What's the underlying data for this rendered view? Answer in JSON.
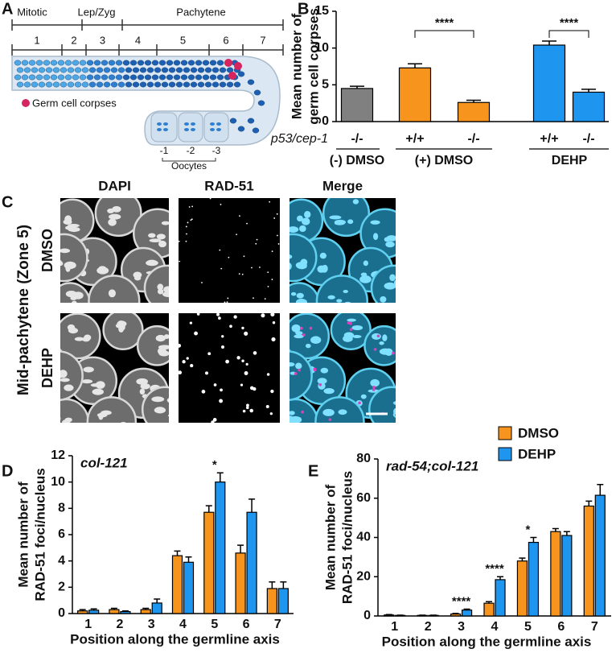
{
  "panel_labels": [
    "A",
    "B",
    "C",
    "D",
    "E"
  ],
  "diagram": {
    "stages": [
      "Mitotic",
      "Lep/Zyg",
      "Pachytene"
    ],
    "zones": [
      "1",
      "2",
      "3",
      "4",
      "5",
      "6",
      "7"
    ],
    "legend": "Germ cell corpses",
    "oocytes": [
      "-1",
      "-2",
      "-3"
    ],
    "oocytes_label": "Oocytes"
  },
  "micrographs": {
    "title": "Mid-pachytene (Zone 5)",
    "columns": [
      "DAPI",
      "RAD-51",
      "Merge"
    ],
    "rows": [
      "DMSO",
      "DEHP"
    ]
  },
  "chart_data": [
    {
      "type": "bar",
      "ylabel": [
        "Mean number of",
        "germ cell corpses"
      ],
      "categories": [
        "-/-",
        "+/+",
        "-/-",
        "+/+",
        "-/-"
      ],
      "category_axis_label": "p53/cep-1",
      "group_labels": [
        "(-) DMSO",
        "(+) DMSO",
        "DEHP"
      ],
      "values": [
        4.5,
        7.3,
        2.6,
        10.4,
        4.0
      ],
      "errors": [
        0.3,
        0.55,
        0.3,
        0.55,
        0.4
      ],
      "colors": [
        "#808080",
        "#f7941d",
        "#f7941d",
        "#1e96f0",
        "#1e96f0"
      ],
      "ylim": [
        0,
        15
      ],
      "yticks": [
        0,
        5,
        10,
        15
      ],
      "annotations": [
        {
          "text": "****"
        },
        {
          "text": "****"
        }
      ]
    },
    {
      "type": "grouped_bar",
      "title": "col-121",
      "xlabel": "Position along the germline axis",
      "ylabel": [
        "Mean number of",
        "RAD-51 foci/nucleus"
      ],
      "categories": [
        "1",
        "2",
        "3",
        "4",
        "5",
        "6",
        "7"
      ],
      "series": [
        {
          "color": "#f7941d",
          "values": [
            0.2,
            0.3,
            0.3,
            4.4,
            7.7,
            4.6,
            1.9
          ],
          "errors": [
            0.1,
            0.1,
            0.1,
            0.35,
            0.5,
            0.6,
            0.5
          ]
        },
        {
          "color": "#1e96f0",
          "values": [
            0.25,
            0.15,
            0.8,
            3.9,
            10.0,
            7.7,
            1.9
          ],
          "errors": [
            0.1,
            0.05,
            0.3,
            0.4,
            0.7,
            1.0,
            0.5
          ]
        }
      ],
      "ylim": [
        0,
        12
      ],
      "yticks": [
        0,
        2,
        4,
        6,
        8,
        10,
        12
      ],
      "annotations": [
        {
          "text": "*",
          "category": "5"
        }
      ],
      "legend": false
    },
    {
      "type": "grouped_bar",
      "title": "rad-54;col-121",
      "xlabel": "Position along the germline axis",
      "ylabel": [
        "Mean number of",
        "RAD-51 foci/nucleus"
      ],
      "categories": [
        "1",
        "2",
        "3",
        "4",
        "5",
        "6",
        "7"
      ],
      "series": [
        {
          "name": "DMSO",
          "color": "#f7941d",
          "values": [
            0.5,
            0.3,
            1,
            6.5,
            28,
            43,
            56
          ],
          "errors": [
            0.2,
            0.1,
            0.3,
            0.8,
            1.5,
            1.5,
            2.5
          ]
        },
        {
          "name": "DEHP",
          "color": "#1e96f0",
          "values": [
            0.3,
            0.3,
            3,
            18.5,
            37.5,
            41,
            61.5
          ],
          "errors": [
            0.1,
            0.1,
            0.5,
            1.5,
            2.5,
            2,
            5.5
          ]
        }
      ],
      "ylim": [
        0,
        80
      ],
      "yticks": [
        0,
        20,
        40,
        60,
        80
      ],
      "annotations": [
        {
          "text": "****",
          "category": "3"
        },
        {
          "text": "****",
          "category": "4"
        },
        {
          "text": "*",
          "category": "5"
        }
      ],
      "legend": "top-right"
    }
  ]
}
